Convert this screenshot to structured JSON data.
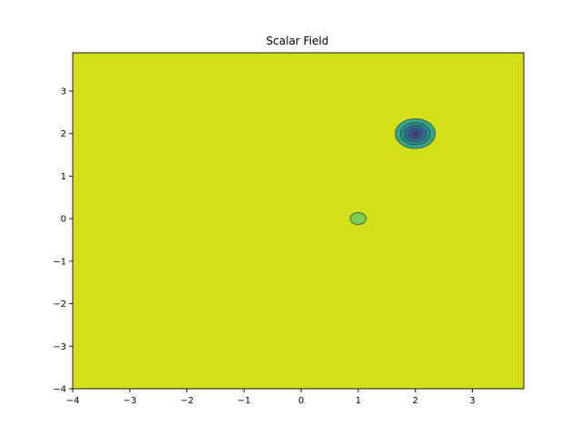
{
  "chart_data": {
    "type": "contour",
    "title": "Scalar Field",
    "xlabel": "",
    "ylabel": "",
    "xlim": [
      -4,
      3.9
    ],
    "ylim": [
      -4,
      3.9
    ],
    "x_ticks": [
      -4,
      -3,
      -2,
      -1,
      0,
      1,
      2,
      3
    ],
    "y_ticks": [
      -4,
      -3,
      -2,
      -1,
      0,
      1,
      2,
      3
    ],
    "x_tick_labels": [
      "−4",
      "−3",
      "−2",
      "−1",
      "0",
      "1",
      "2",
      "3"
    ],
    "y_tick_labels": [
      "−4",
      "−3",
      "−2",
      "−1",
      "0",
      "1",
      "2",
      "3"
    ],
    "grid": false,
    "background_level_color": "#d2e01a",
    "features": [
      {
        "name": "sink",
        "center": [
          2,
          2
        ],
        "levels": [
          {
            "rx": 0.35,
            "ry": 0.35,
            "color": "#34a586"
          },
          {
            "rx": 0.26,
            "ry": 0.26,
            "color": "#2a8a8c"
          },
          {
            "rx": 0.19,
            "ry": 0.19,
            "color": "#2f6f8d"
          },
          {
            "rx": 0.12,
            "ry": 0.12,
            "color": "#3b528b"
          },
          {
            "rx": 0.05,
            "ry": 0.05,
            "color": "#472d7b"
          }
        ]
      },
      {
        "name": "bump",
        "center": [
          1,
          0
        ],
        "levels": [
          {
            "rx": 0.14,
            "ry": 0.14,
            "color": "#7bd04f"
          }
        ]
      }
    ]
  }
}
